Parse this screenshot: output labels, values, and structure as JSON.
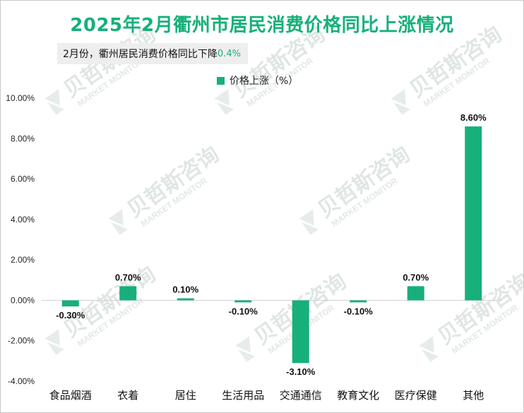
{
  "title": "2025年2月衢州市居民消费价格同比上涨情况",
  "subtitle": {
    "text": "2月份，衢州居民消费价格同比下降",
    "value": "0.4%"
  },
  "watermark": {
    "name": "贝哲斯咨询",
    "sub": "MARKET MONITOR"
  },
  "colors": {
    "bar": "#17b07a",
    "title": "#17b07a"
  },
  "chart_data": {
    "type": "bar",
    "title": "2025年2月衢州市居民消费价格同比上涨情况",
    "categories": [
      "食品烟酒",
      "衣着",
      "居住",
      "生活用品",
      "交通通信",
      "教育文化",
      "医疗保健",
      "其他"
    ],
    "series": [
      {
        "name": "价格上涨（%）",
        "values": [
          -0.3,
          0.7,
          0.1,
          -0.1,
          -3.1,
          -0.1,
          0.7,
          8.6
        ],
        "labels": [
          "-0.30%",
          "0.70%",
          "0.10%",
          "-0.10%",
          "-3.10%",
          "-0.10%",
          "0.70%",
          "8.60%"
        ]
      }
    ],
    "ylim": [
      -4,
      10
    ],
    "yticks": [
      "10.00%",
      "8.00%",
      "6.00%",
      "4.00%",
      "2.00%",
      "0.00%",
      "-2.00%",
      "-4.00%"
    ],
    "ytick_values": [
      10,
      8,
      6,
      4,
      2,
      0,
      -2,
      -4
    ],
    "legend": "top-center",
    "grid": false
  }
}
